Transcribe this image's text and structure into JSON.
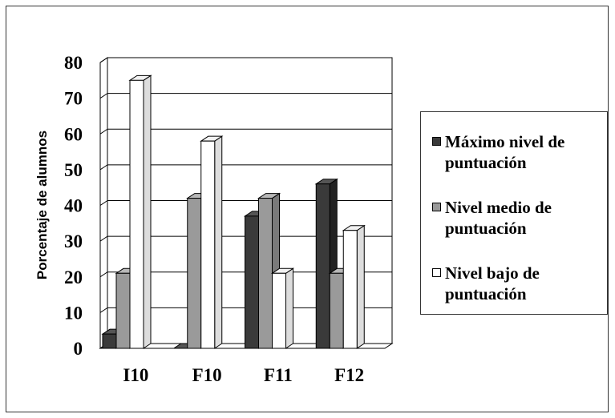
{
  "chart_data": {
    "type": "bar",
    "ylabel": "Porcentaje de alumnos",
    "xlabel": "",
    "title": "",
    "ylim": [
      0,
      80
    ],
    "yticks": [
      0,
      10,
      20,
      30,
      40,
      50,
      60,
      70,
      80
    ],
    "grid": true,
    "legend_position": "right",
    "categories": [
      "I10",
      "F10",
      "F11",
      "F12"
    ],
    "series": [
      {
        "name": "Máximo nivel de puntuación",
        "color": "#3a3a3a",
        "values": [
          4,
          0,
          37,
          46
        ]
      },
      {
        "name": "Nivel medio de puntuación",
        "color": "#9a9a9a",
        "values": [
          21,
          42,
          42,
          21
        ]
      },
      {
        "name": "Nivel bajo de puntuación",
        "color": "#ffffff",
        "values": [
          75,
          58,
          21,
          33
        ]
      }
    ]
  }
}
